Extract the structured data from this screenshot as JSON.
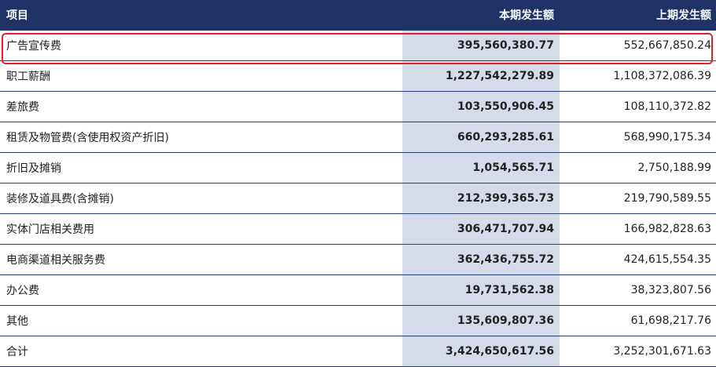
{
  "table": {
    "headers": [
      "项目",
      "本期发生额",
      "上期发生额"
    ],
    "rows": [
      [
        "广告宣传费",
        "395,560,380.77",
        "552,667,850.24"
      ],
      [
        "职工薪酬",
        "1,227,542,279.89",
        "1,108,372,086.39"
      ],
      [
        "差旅费",
        "103,550,906.45",
        "108,110,372.82"
      ],
      [
        "租赁及物管费(含使用权资产折旧)",
        "660,293,285.61",
        "568,990,175.34"
      ],
      [
        "折旧及摊销",
        "1,054,565.71",
        "2,750,188.99"
      ],
      [
        "装修及道具费(含摊销)",
        "212,399,365.73",
        "219,790,589.55"
      ],
      [
        "实体门店相关费用",
        "306,471,707.94",
        "166,982,828.63"
      ],
      [
        "电商渠道相关服务费",
        "362,436,755.72",
        "424,615,554.35"
      ],
      [
        "办公费",
        "19,731,562.38",
        "38,323,807.56"
      ],
      [
        "其他",
        "135,609,807.36",
        "61,698,217.76"
      ],
      [
        "合计",
        "3,424,650,617.56",
        "3,252,301,671.63"
      ]
    ]
  }
}
